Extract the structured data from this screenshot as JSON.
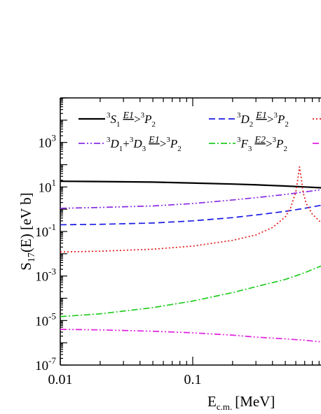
{
  "chart_data": {
    "type": "line",
    "xlabel": "E",
    "xlabel_sub": "c.m.",
    "xlabel_unit": "[MeV]",
    "ylabel": "S",
    "ylabel_sub": "17",
    "ylabel_unit": "(E) [eV b]",
    "x_scale": "log",
    "y_scale": "log",
    "xlim": [
      0.01,
      0.93
    ],
    "ylim": [
      1e-07,
      100000.0
    ],
    "x_ticks": [
      {
        "value": 0.01,
        "label": "0.01"
      },
      {
        "value": 0.1,
        "label": "0.1"
      }
    ],
    "y_ticks": [
      {
        "value": 1e-07,
        "base": "10",
        "exp": "-7"
      },
      {
        "value": 1e-05,
        "base": "10",
        "exp": "-5"
      },
      {
        "value": 0.001,
        "base": "10",
        "exp": "-3"
      },
      {
        "value": 0.1,
        "base": "10",
        "exp": "-1"
      },
      {
        "value": 10.0,
        "base": "10",
        "exp": "1"
      },
      {
        "value": 1000.0,
        "base": "10",
        "exp": "3"
      }
    ],
    "legend_position": "top",
    "series": [
      {
        "key": "s1",
        "color": "#000000",
        "dash": "",
        "legend": {
          "sup1": "3",
          "main1": "S",
          "sub1": "1",
          "arrow": "E1",
          "sup2": "3",
          "main2": "P",
          "sub2": "2"
        },
        "x": [
          0.01,
          0.02,
          0.05,
          0.1,
          0.2,
          0.3,
          0.5,
          0.7,
          0.93
        ],
        "y": [
          18.0,
          17.5,
          16.5,
          15.0,
          13.5,
          12.5,
          11.0,
          10.0,
          9.2
        ]
      },
      {
        "key": "d2",
        "color": "#1a1ae6",
        "dash": "9,5",
        "legend": {
          "sup1": "3",
          "main1": "D",
          "sub1": "2",
          "arrow": "E1",
          "sup2": "3",
          "main2": "P",
          "sub2": "2"
        },
        "x": [
          0.01,
          0.02,
          0.05,
          0.1,
          0.2,
          0.3,
          0.5,
          0.7,
          0.93
        ],
        "y": [
          0.2,
          0.21,
          0.24,
          0.3,
          0.42,
          0.55,
          0.8,
          1.1,
          1.5
        ]
      },
      {
        "key": "d1d3",
        "color": "#8a2be2",
        "dash": "9,3,2,3,2,3",
        "legend": {
          "sup1": "3",
          "main1": "D",
          "sub1": "1",
          "plus": "+",
          "sup1b": "3",
          "main1b": "D",
          "sub1b": "3",
          "arrow": "E1",
          "sup2": "3",
          "main2": "P",
          "sub2": "2"
        },
        "x": [
          0.01,
          0.02,
          0.05,
          0.1,
          0.2,
          0.3,
          0.5,
          0.7,
          0.93
        ],
        "y": [
          1.1,
          1.2,
          1.4,
          1.8,
          2.6,
          3.3,
          4.6,
          6.0,
          7.5
        ]
      },
      {
        "key": "f3",
        "color": "#22cc22",
        "dash": "9,3,2,3",
        "legend": {
          "sup1": "3",
          "main1": "F",
          "sub1": "3",
          "arrow": "E2",
          "sup2": "3",
          "main2": "P",
          "sub2": "2"
        },
        "x": [
          0.01,
          0.02,
          0.05,
          0.1,
          0.2,
          0.3,
          0.5,
          0.7,
          0.93
        ],
        "y": [
          1.5e-05,
          2e-05,
          3.8e-05,
          7.5e-05,
          0.00018,
          0.00033,
          0.0007,
          0.0014,
          0.0028
        ]
      },
      {
        "key": "red",
        "color": "#e41a1a",
        "dash": "2,3",
        "legend": {},
        "x": [
          0.01,
          0.02,
          0.05,
          0.1,
          0.2,
          0.3,
          0.4,
          0.5,
          0.55,
          0.6,
          0.62,
          0.64,
          0.66,
          0.68,
          0.72,
          0.8,
          0.93
        ],
        "y": [
          0.012,
          0.013,
          0.016,
          0.022,
          0.04,
          0.07,
          0.15,
          0.45,
          1.2,
          6.0,
          20.0,
          80.0,
          25.0,
          6.0,
          1.8,
          0.6,
          0.25
        ]
      },
      {
        "key": "magenta",
        "color": "#e020e0",
        "dash": "9,3,2,3,2,3",
        "legend": {},
        "x": [
          0.01,
          0.02,
          0.05,
          0.1,
          0.2,
          0.3,
          0.5,
          0.7,
          0.93
        ],
        "y": [
          4e-06,
          3.8e-06,
          3.3e-06,
          2.8e-06,
          2.2e-06,
          1.8e-06,
          1.5e-06,
          1.3e-06,
          1.1e-06
        ]
      }
    ]
  }
}
